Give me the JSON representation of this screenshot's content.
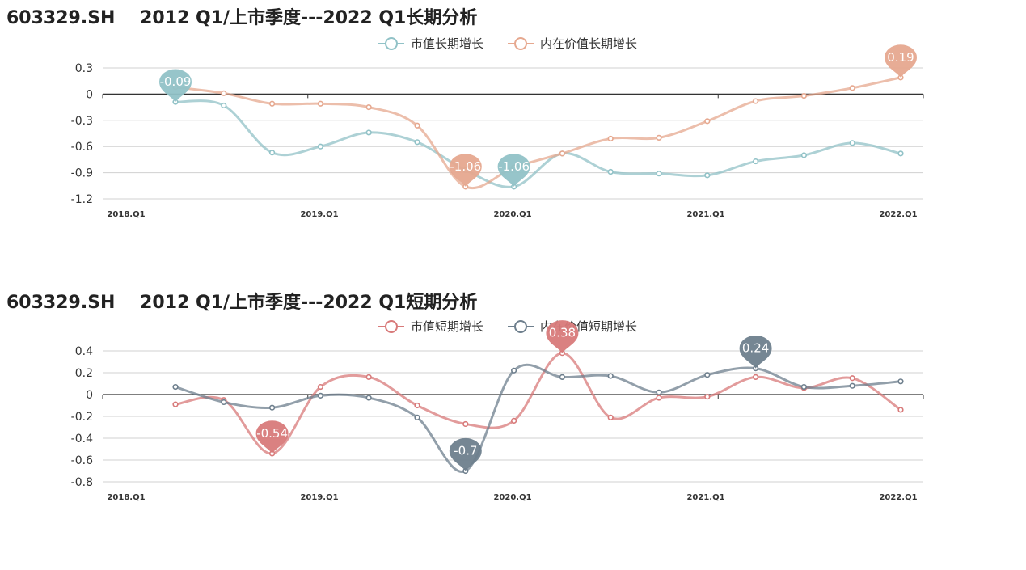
{
  "charts": [
    {
      "title": "603329.SH    2012 Q1/上市季度---2022 Q1长期分析"
    },
    {
      "title": "603329.SH    2012 Q1/上市季度---2022 Q1短期分析"
    }
  ],
  "chart_data": [
    {
      "type": "line",
      "title": "603329.SH    2012 Q1/上市季度---2022 Q1长期分析",
      "x_tick_labels": [
        "2018.Q1",
        "2019.Q1",
        "2020.Q1",
        "2021.Q1",
        "2022.Q1"
      ],
      "x": [
        "2018.Q2",
        "2018.Q3",
        "2018.Q4",
        "2019.Q1",
        "2019.Q2",
        "2019.Q3",
        "2019.Q4",
        "2020.Q1",
        "2020.Q2",
        "2020.Q3",
        "2020.Q4",
        "2021.Q1",
        "2021.Q2",
        "2021.Q3",
        "2021.Q4",
        "2022.Q1"
      ],
      "ylim": [
        -1.2,
        0.3
      ],
      "y_ticks": [
        0.3,
        0,
        -0.3,
        -0.6,
        -0.9,
        -1.2
      ],
      "y_tick_labels": [
        "0.3",
        "0",
        "-0.3",
        "-0.6",
        "-0.9",
        "-1.2"
      ],
      "grid": true,
      "legend_position": "top-center",
      "series": [
        {
          "name": "市值长期增长",
          "color": "#91c2c7",
          "values": [
            -0.09,
            -0.13,
            -0.67,
            -0.6,
            -0.44,
            -0.55,
            -0.87,
            -1.06,
            -0.68,
            -0.89,
            -0.91,
            -0.93,
            -0.77,
            -0.7,
            -0.56,
            -0.68
          ],
          "pins": [
            {
              "index": 0,
              "label": "-0.09"
            },
            {
              "index": 7,
              "label": "-1.06"
            }
          ]
        },
        {
          "name": "内在价值长期增长",
          "color": "#e6a88f",
          "values": [
            0.08,
            0.01,
            -0.11,
            -0.11,
            -0.15,
            -0.36,
            -1.06,
            -0.84,
            -0.68,
            -0.51,
            -0.5,
            -0.31,
            -0.08,
            -0.02,
            0.07,
            0.19
          ],
          "pins": [
            {
              "index": 6,
              "label": "-1.06"
            },
            {
              "index": 15,
              "label": "0.19"
            }
          ]
        }
      ]
    },
    {
      "type": "line",
      "title": "603329.SH    2012 Q1/上市季度---2022 Q1短期分析",
      "x_tick_labels": [
        "2018.Q1",
        "2019.Q1",
        "2020.Q1",
        "2021.Q1",
        "2022.Q1"
      ],
      "x": [
        "2018.Q2",
        "2018.Q3",
        "2018.Q4",
        "2019.Q1",
        "2019.Q2",
        "2019.Q3",
        "2019.Q4",
        "2020.Q1",
        "2020.Q2",
        "2020.Q3",
        "2020.Q4",
        "2021.Q1",
        "2021.Q2",
        "2021.Q3",
        "2021.Q4",
        "2022.Q1"
      ],
      "ylim": [
        -0.8,
        0.4
      ],
      "y_ticks": [
        0.4,
        0.2,
        0,
        -0.2,
        -0.4,
        -0.6,
        -0.8
      ],
      "y_tick_labels": [
        "0.4",
        "0.2",
        "0",
        "-0.2",
        "-0.4",
        "-0.6",
        "-0.8"
      ],
      "grid": true,
      "legend_position": "top-center",
      "series": [
        {
          "name": "市值短期增长",
          "color": "#d87a7a",
          "values": [
            -0.09,
            -0.05,
            -0.54,
            0.07,
            0.16,
            -0.1,
            -0.27,
            -0.24,
            0.38,
            -0.21,
            -0.03,
            -0.02,
            0.16,
            0.06,
            0.15,
            -0.14
          ],
          "pins": [
            {
              "index": 2,
              "label": "-0.54"
            },
            {
              "index": 8,
              "label": "0.38"
            }
          ]
        },
        {
          "name": "内在价值短期增长",
          "color": "#6e7f8d",
          "values": [
            0.07,
            -0.07,
            -0.12,
            -0.01,
            -0.03,
            -0.21,
            -0.7,
            0.22,
            0.16,
            0.17,
            0.02,
            0.18,
            0.24,
            0.07,
            0.08,
            0.12
          ],
          "pins": [
            {
              "index": 6,
              "label": "-0.7"
            },
            {
              "index": 12,
              "label": "0.24"
            }
          ]
        }
      ]
    }
  ]
}
